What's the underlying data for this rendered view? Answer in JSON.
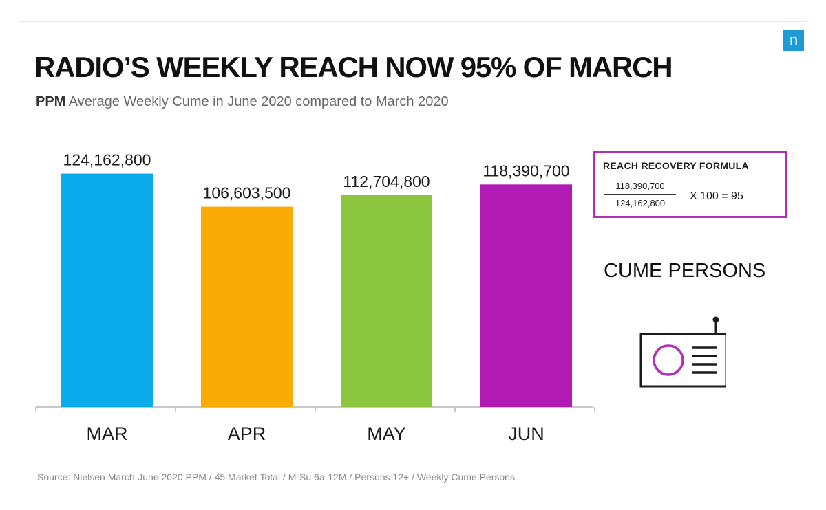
{
  "logo": {
    "glyph": "n"
  },
  "header": {
    "title": "RADIO’S WEEKLY REACH NOW 95% OF MARCH",
    "subtitle_strong": "PPM",
    "subtitle_rest": " Average Weekly Cume in June 2020 compared to March 2020"
  },
  "chart_data": {
    "type": "bar",
    "categories": [
      "MAR",
      "APR",
      "MAY",
      "JUN"
    ],
    "values": [
      124162800,
      106603500,
      112704800,
      118390700
    ],
    "value_labels": [
      "124,162,800",
      "106,603,500",
      "112,704,800",
      "118,390,700"
    ],
    "colors": [
      "#0aabec",
      "#fbab06",
      "#8cc63f",
      "#b11ab3"
    ],
    "title": "",
    "xlabel": "",
    "ylabel": "",
    "ylim": [
      0,
      130000000
    ],
    "grid": false,
    "legend": "none"
  },
  "formula": {
    "title": "REACH RECOVERY FORMULA",
    "numerator": "118,390,700",
    "denominator": "124,162,800",
    "result": "X 100 = 95",
    "border_color": "#b02fb4"
  },
  "side": {
    "label": "CUME PERSONS",
    "icon": "radio-icon",
    "icon_accent_color": "#b02fb4"
  },
  "footer": {
    "source": "Source: Nielsen March-June 2020 PPM / 45 Market Total / M-Su 6a-12M / Persons 12+ / Weekly Cume Persons"
  }
}
